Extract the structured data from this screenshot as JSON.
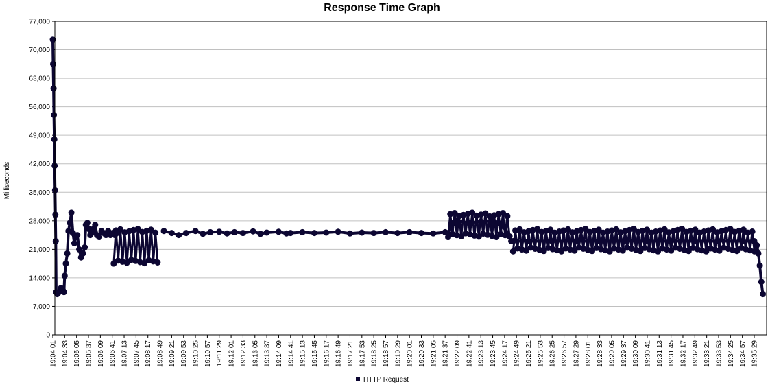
{
  "chart_data": {
    "type": "line",
    "title": "Response Time Graph",
    "xlabel": "",
    "ylabel": "Milliseconds",
    "ylim": [
      0,
      77000
    ],
    "y_ticks": [
      "0",
      "7,000",
      "14,000",
      "21,000",
      "28,000",
      "35,000",
      "42,000",
      "49,000",
      "56,000",
      "63,000",
      "70,000",
      "77,000"
    ],
    "y_tick_values": [
      0,
      7000,
      14000,
      21000,
      28000,
      35000,
      42000,
      49000,
      56000,
      63000,
      70000,
      77000
    ],
    "x_ticks": [
      "19:04:01",
      "19:04:33",
      "19:05:05",
      "19:05:37",
      "19:06:09",
      "19:06:41",
      "19:07:13",
      "19:07:45",
      "19:08:17",
      "19:08:49",
      "19:09:21",
      "19:09:53",
      "19:10:25",
      "19:10:57",
      "19:11:29",
      "19:12:01",
      "19:12:33",
      "19:13:05",
      "19:13:37",
      "19:14:09",
      "19:14:41",
      "19:15:13",
      "19:15:45",
      "19:16:17",
      "19:16:49",
      "19:17:21",
      "19:17:53",
      "19:18:25",
      "19:18:57",
      "19:19:29",
      "19:20:01",
      "19:20:33",
      "19:21:05",
      "19:21:37",
      "19:22:09",
      "19:22:41",
      "19:23:13",
      "19:23:45",
      "19:24:17",
      "19:24:49",
      "19:25:21",
      "19:25:53",
      "19:26:25",
      "19:26:57",
      "19:27:29",
      "19:28:01",
      "19:28:33",
      "19:29:05",
      "19:29:37",
      "19:30:09",
      "19:30:41",
      "19:31:13",
      "19:31:45",
      "19:32:17",
      "19:32:49",
      "19:33:21",
      "19:33:53",
      "19:34:25",
      "19:34:57",
      "19:35:29"
    ],
    "grid": true,
    "legend_position": "bottom-center",
    "colors": {
      "series": "#0c0632",
      "grid": "#c0c0c0",
      "axis": "#000000"
    },
    "series": [
      {
        "name": "HTTP Request",
        "segments": [
          {
            "start": "19:04:01",
            "points": [
              [
                "19:04:01",
                72500
              ],
              [
                "19:04:02",
                66500
              ],
              [
                "19:04:03",
                60500
              ],
              [
                "19:04:04",
                54000
              ],
              [
                "19:04:05",
                48000
              ],
              [
                "19:04:06",
                41500
              ],
              [
                "19:04:07",
                35500
              ],
              [
                "19:04:08",
                29500
              ],
              [
                "19:04:09",
                23000
              ],
              [
                "19:04:10",
                10500
              ],
              [
                "19:04:13",
                10000
              ],
              [
                "19:04:18",
                10500
              ],
              [
                "19:04:23",
                11500
              ],
              [
                "19:04:28",
                11000
              ],
              [
                "19:04:31",
                10500
              ],
              [
                "19:04:33",
                14500
              ],
              [
                "19:04:36",
                17500
              ],
              [
                "19:04:40",
                20000
              ],
              [
                "19:04:43",
                25500
              ],
              [
                "19:04:47",
                27500
              ],
              [
                "19:04:51",
                30000
              ],
              [
                "19:04:55",
                25000
              ],
              [
                "19:04:59",
                22500
              ],
              [
                "19:05:03",
                24000
              ],
              [
                "19:05:07",
                24500
              ],
              [
                "19:05:12",
                21000
              ],
              [
                "19:05:17",
                19000
              ],
              [
                "19:05:22",
                20000
              ],
              [
                "19:05:27",
                21500
              ],
              [
                "19:05:30",
                27000
              ],
              [
                "19:05:34",
                27500
              ],
              [
                "19:05:38",
                26000
              ],
              [
                "19:05:42",
                24500
              ],
              [
                "19:05:46",
                25000
              ],
              [
                "19:05:50",
                26000
              ],
              [
                "19:05:55",
                27000
              ],
              [
                "19:06:00",
                24500
              ],
              [
                "19:06:06",
                24000
              ],
              [
                "19:06:12",
                25500
              ],
              [
                "19:06:18",
                25000
              ],
              [
                "19:06:24",
                24500
              ],
              [
                "19:06:30",
                25500
              ],
              [
                "19:06:36",
                24500
              ],
              [
                "19:06:42",
                25000
              ],
              [
                "19:06:48",
                24500
              ],
              [
                "19:06:54",
                25000
              ]
            ]
          },
          {
            "start": "19:09:00",
            "points": [
              [
                "19:09:00",
                25500
              ],
              [
                "19:09:21",
                25000
              ],
              [
                "19:09:40",
                24500
              ],
              [
                "19:10:00",
                25000
              ],
              [
                "19:10:25",
                25500
              ],
              [
                "19:10:45",
                24800
              ],
              [
                "19:11:05",
                25200
              ],
              [
                "19:11:29",
                25300
              ],
              [
                "19:11:50",
                24900
              ],
              [
                "19:12:10",
                25200
              ],
              [
                "19:12:33",
                25000
              ],
              [
                "19:13:00",
                25400
              ],
              [
                "19:13:20",
                24800
              ],
              [
                "19:13:37",
                25100
              ],
              [
                "19:14:09",
                25300
              ],
              [
                "19:14:30",
                24900
              ],
              [
                "19:14:41",
                25000
              ],
              [
                "19:15:13",
                25200
              ],
              [
                "19:15:45",
                25000
              ],
              [
                "19:16:17",
                25100
              ],
              [
                "19:16:49",
                25300
              ],
              [
                "19:17:21",
                24900
              ],
              [
                "19:17:53",
                25100
              ],
              [
                "19:18:25",
                25000
              ],
              [
                "19:18:57",
                25200
              ],
              [
                "19:19:29",
                25000
              ],
              [
                "19:20:01",
                25200
              ],
              [
                "19:20:33",
                25000
              ],
              [
                "19:21:05",
                24900
              ],
              [
                "19:21:37",
                25200
              ]
            ]
          },
          {
            "start": "19:21:45",
            "points": [
              [
                "19:21:45",
                25000
              ],
              [
                "19:22:00",
                27500
              ],
              [
                "19:22:09",
                28000
              ],
              [
                "19:22:41",
                27500
              ],
              [
                "19:23:13",
                27800
              ],
              [
                "19:23:45",
                28000
              ],
              [
                "19:24:00",
                27500
              ],
              [
                "19:24:17",
                26500
              ],
              [
                "19:24:35",
                23000
              ]
            ]
          },
          {
            "start": "19:24:40",
            "points": [
              [
                "19:24:40",
                23000
              ],
              [
                "19:25:21",
                23000
              ],
              [
                "19:26:25",
                23000
              ],
              [
                "19:27:29",
                23000
              ],
              [
                "19:28:33",
                23000
              ],
              [
                "19:29:37",
                23000
              ],
              [
                "19:30:41",
                23000
              ],
              [
                "19:31:45",
                23000
              ],
              [
                "19:32:49",
                23000
              ],
              [
                "19:33:53",
                23000
              ],
              [
                "19:34:57",
                23000
              ],
              [
                "19:35:29",
                23000
              ],
              [
                "19:35:36",
                22000
              ],
              [
                "19:35:40",
                20000
              ],
              [
                "19:35:44",
                17000
              ],
              [
                "19:35:48",
                13000
              ],
              [
                "19:35:52",
                10000
              ]
            ]
          }
        ],
        "bands": [
          {
            "from": "19:06:45",
            "to": "19:08:49",
            "min": 17500,
            "max": 26000
          },
          {
            "from": "19:21:45",
            "to": "19:24:35",
            "min": 24000,
            "max": 30000
          },
          {
            "from": "19:24:40",
            "to": "19:35:34",
            "min": 20500,
            "max": 26000
          }
        ]
      }
    ]
  }
}
